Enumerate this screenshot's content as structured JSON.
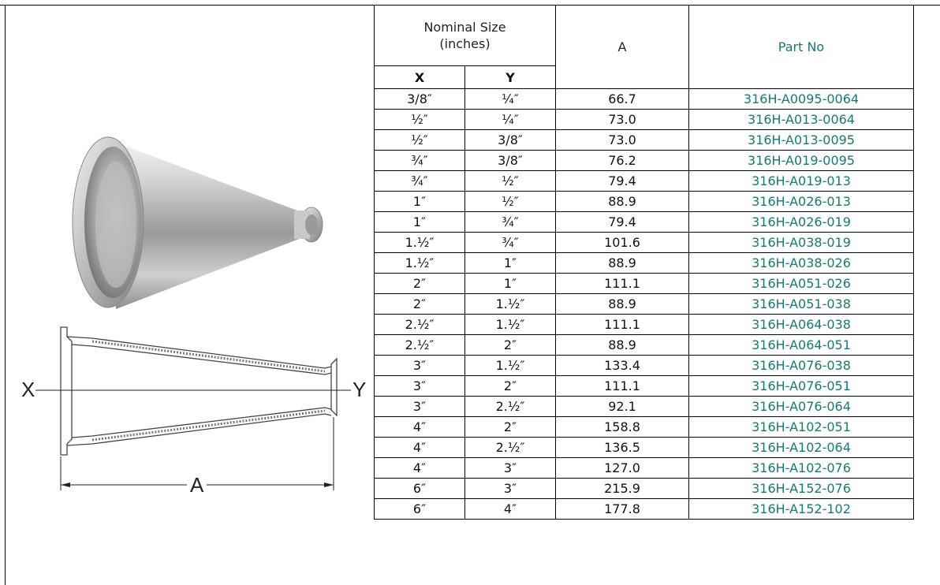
{
  "header": {
    "nominal_size": "Nominal Size\n(inches)",
    "a": "A",
    "part_no": "Part No",
    "x": "X",
    "y": "Y"
  },
  "drawing": {
    "x_label": "X",
    "y_label": "Y",
    "a_label": "A"
  },
  "rows": [
    {
      "x": "3/8″",
      "y": "¼″",
      "a": "66.7",
      "part": "316H-A0095-0064"
    },
    {
      "x": "½″",
      "y": "¼″",
      "a": "73.0",
      "part": "316H-A013-0064"
    },
    {
      "x": "½″",
      "y": "3/8″",
      "a": "73.0",
      "part": "316H-A013-0095"
    },
    {
      "x": "¾″",
      "y": "3/8″",
      "a": "76.2",
      "part": "316H-A019-0095"
    },
    {
      "x": "¾″",
      "y": "½″",
      "a": "79.4",
      "part": "316H-A019-013"
    },
    {
      "x": "1″",
      "y": "½″",
      "a": "88.9",
      "part": "316H-A026-013"
    },
    {
      "x": "1″",
      "y": "¾″",
      "a": "79.4",
      "part": "316H-A026-019"
    },
    {
      "x": "1.½″",
      "y": "¾″",
      "a": "101.6",
      "part": "316H-A038-019"
    },
    {
      "x": "1.½″",
      "y": "1″",
      "a": "88.9",
      "part": "316H-A038-026"
    },
    {
      "x": "2″",
      "y": "1″",
      "a": "111.1",
      "part": "316H-A051-026"
    },
    {
      "x": "2″",
      "y": "1.½″",
      "a": "88.9",
      "part": "316H-A051-038"
    },
    {
      "x": "2.½″",
      "y": "1.½″",
      "a": "111.1",
      "part": "316H-A064-038"
    },
    {
      "x": "2.½″",
      "y": "2″",
      "a": "88.9",
      "part": "316H-A064-051"
    },
    {
      "x": "3″",
      "y": "1.½″",
      "a": "133.4",
      "part": "316H-A076-038"
    },
    {
      "x": "3″",
      "y": "2″",
      "a": "111.1",
      "part": "316H-A076-051"
    },
    {
      "x": "3″",
      "y": "2.½″",
      "a": "92.1",
      "part": "316H-A076-064"
    },
    {
      "x": "4″",
      "y": "2″",
      "a": "158.8",
      "part": "316H-A102-051"
    },
    {
      "x": "4″",
      "y": "2.½″",
      "a": "136.5",
      "part": "316H-A102-064"
    },
    {
      "x": "4″",
      "y": "3″",
      "a": "127.0",
      "part": "316H-A102-076"
    },
    {
      "x": "6″",
      "y": "3″",
      "a": "215.9",
      "part": "316H-A152-076"
    },
    {
      "x": "6″",
      "y": "4″",
      "a": "177.8",
      "part": "316H-A152-102"
    }
  ]
}
